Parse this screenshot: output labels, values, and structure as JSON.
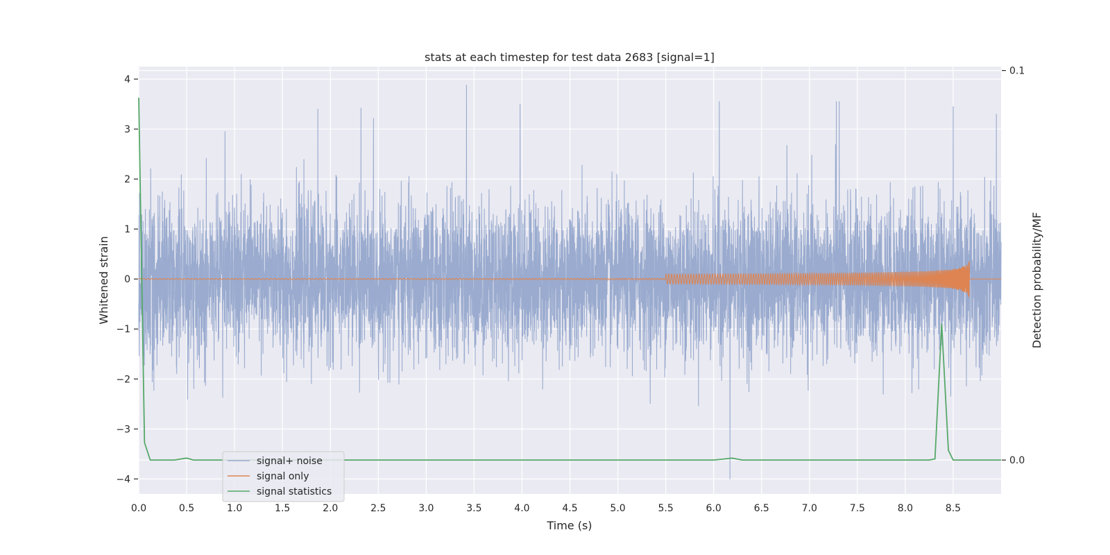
{
  "chart_data": {
    "type": "line",
    "title": "stats at each timestep for test data 2683 [signal=1]",
    "xlabel": "Time (s)",
    "ylabel": "Whitened strain",
    "y2label": "Detection probability/MF",
    "xlim": [
      0,
      9
    ],
    "ylim": [
      -4.3,
      4.25
    ],
    "y2lim": [
      -0.0087,
      0.101
    ],
    "x_ticks": [
      "0.0",
      "0.5",
      "1.0",
      "1.5",
      "2.0",
      "2.5",
      "3.0",
      "3.5",
      "4.0",
      "4.5",
      "5.0",
      "5.5",
      "6.0",
      "6.5",
      "7.0",
      "7.5",
      "8.0",
      "8.5"
    ],
    "y_ticks": [
      "4",
      "3",
      "2",
      "1",
      "0",
      "−1",
      "−2",
      "−3",
      "−4"
    ],
    "y2_ticks": [
      "0.1",
      "0.0"
    ],
    "grid": true,
    "legend_position": "lower-left",
    "colors": {
      "noise": "#9aabcf",
      "signal": "#dd8452",
      "stats": "#55a868",
      "background": "#eaeaf2",
      "grid": "#ffffff"
    },
    "series": [
      {
        "name": "signal+ noise",
        "axis": "left",
        "description_values": {
          "approx_std": 0.75,
          "max": 3.9,
          "min": -4.0
        },
        "peaks_x": [
          0.9,
          1.87,
          2.32,
          3.42,
          3.98,
          6.06,
          6.17,
          7.28,
          7.31,
          8.5,
          8.95
        ],
        "peaks_y": [
          2.95,
          3.4,
          3.42,
          3.88,
          3.5,
          3.55,
          -4.0,
          3.55,
          3.55,
          3.45,
          3.3
        ]
      },
      {
        "name": "signal only",
        "axis": "left",
        "chirp_end_x": 8.67,
        "chirp_max_amplitude": 0.42
      },
      {
        "name": "signal statistics",
        "axis": "right",
        "x": [
          0.0,
          0.06,
          0.12,
          0.37,
          0.5,
          0.57,
          1.0,
          2.0,
          3.0,
          3.9,
          4.0,
          5.0,
          6.0,
          6.12,
          6.19,
          6.3,
          7.0,
          8.0,
          8.25,
          8.31,
          8.38,
          8.45,
          8.5,
          9.0
        ],
        "values": [
          0.093,
          0.0045,
          0.0,
          0.0,
          0.0005,
          0.0,
          0.0,
          0.0,
          0.0,
          0.0,
          0.0,
          0.0,
          0.0,
          0.0003,
          0.0005,
          0.0,
          0.0,
          0.0,
          0.0,
          0.0003,
          0.035,
          0.0025,
          0.0,
          0.0
        ]
      }
    ]
  }
}
